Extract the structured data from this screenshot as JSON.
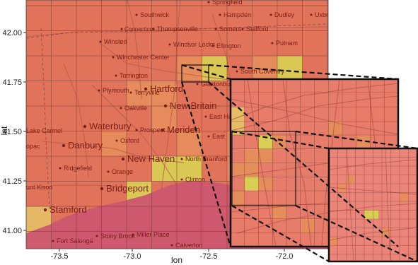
{
  "map": {
    "xlabel": "lon",
    "ylabel": "lat",
    "xticks": [
      "-73.5",
      "-73.0",
      "-72.5",
      "-72.0"
    ],
    "yticks": [
      "42.00",
      "41.75",
      "41.50",
      "41.25",
      "41.00"
    ],
    "colors": {
      "base": "#e0735a",
      "warm": "#e68e5c",
      "yellow": "#d8d253",
      "pale": "#e6c066",
      "sea": "#cc5670",
      "grid": "#7a3a30",
      "road": "#b85a4a",
      "frame": "#111111"
    },
    "towns": [
      {
        "id": "southwick",
        "label": "Southwick",
        "size": "small"
      },
      {
        "id": "hampden",
        "label": "Hampden",
        "size": "small"
      },
      {
        "id": "dudley",
        "label": "Dudley",
        "size": "small"
      },
      {
        "id": "uxbr",
        "label": "Uxbr",
        "size": "small"
      },
      {
        "id": "springfield",
        "label": "Springfield",
        "size": "small"
      },
      {
        "id": "connecticut",
        "label": "Connecticut",
        "size": "tiny"
      },
      {
        "id": "thompsonville",
        "label": "Thompsonville",
        "size": "small"
      },
      {
        "id": "somers",
        "label": "Somers",
        "size": "small"
      },
      {
        "id": "stafford",
        "label": "Stafford",
        "size": "small"
      },
      {
        "id": "winsted",
        "label": "Winsted",
        "size": "small"
      },
      {
        "id": "windsor-locks",
        "label": "Windsor Locks",
        "size": "small"
      },
      {
        "id": "ellington",
        "label": "Ellington",
        "size": "small"
      },
      {
        "id": "putnam",
        "label": "Putnam",
        "size": "small"
      },
      {
        "id": "winchester-center",
        "label": "Winchester Center",
        "size": "small"
      },
      {
        "id": "torrington",
        "label": "Torrington",
        "size": "small"
      },
      {
        "id": "hartford",
        "label": "Hartford",
        "size": "large"
      },
      {
        "id": "south-coventry",
        "label": "South Coventry",
        "size": "small"
      },
      {
        "id": "plymouth",
        "label": "Plymouth",
        "size": "small"
      },
      {
        "id": "terryville",
        "label": "Terryville",
        "size": "small"
      },
      {
        "id": "glastonbury",
        "label": "Glastonbury Ce",
        "size": "small"
      },
      {
        "id": "oakville",
        "label": "Oakville",
        "size": "small"
      },
      {
        "id": "new-britain",
        "label": "New Britain",
        "size": "large"
      },
      {
        "id": "east-ha",
        "label": "East Ha",
        "size": "small"
      },
      {
        "id": "lake-carmel",
        "label": "Lake Carmel",
        "size": "small"
      },
      {
        "id": "waterbury",
        "label": "Waterbury",
        "size": "large"
      },
      {
        "id": "prospect",
        "label": "Prospect",
        "size": "small"
      },
      {
        "id": "meriden",
        "label": "Meriden",
        "size": "large"
      },
      {
        "id": "east",
        "label": "East",
        "size": "small"
      },
      {
        "id": "danbury",
        "label": "Danbury",
        "size": "large"
      },
      {
        "id": "oxford",
        "label": "Oxford",
        "size": "small"
      },
      {
        "id": "copac",
        "label": "opac",
        "size": "small"
      },
      {
        "id": "new-haven",
        "label": "New Haven",
        "size": "large"
      },
      {
        "id": "north-branford",
        "label": "North Branford",
        "size": "small"
      },
      {
        "id": "ridgefield",
        "label": "Ridgefield",
        "size": "small"
      },
      {
        "id": "orange",
        "label": "Orange",
        "size": "small"
      },
      {
        "id": "clinton",
        "label": "Clinton",
        "size": "small"
      },
      {
        "id": "mount-kisco",
        "label": "unt Kisco",
        "size": "small"
      },
      {
        "id": "bridgeport",
        "label": "Bridgeport",
        "size": "large"
      },
      {
        "id": "stamford",
        "label": "Stamford",
        "size": "large"
      },
      {
        "id": "stony-brook",
        "label": "Stony Brook",
        "size": "small"
      },
      {
        "id": "miller-place",
        "label": "Miller Place",
        "size": "small"
      },
      {
        "id": "fort-salonga",
        "label": "Fort Salonga",
        "size": "small"
      },
      {
        "id": "calverton",
        "label": "Calverton",
        "size": "small"
      }
    ]
  }
}
